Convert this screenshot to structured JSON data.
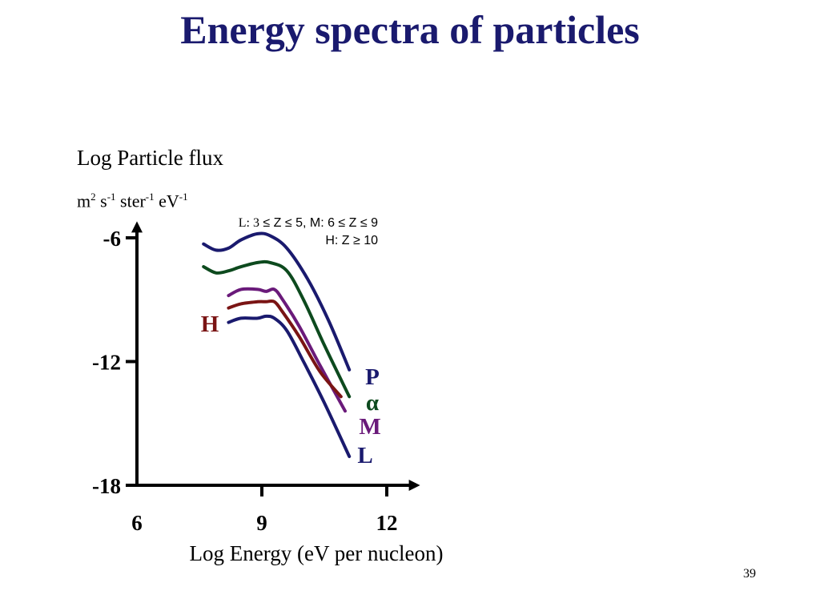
{
  "slide": {
    "title": "Energy spectra of particles",
    "page_number": "39"
  },
  "chart_data": {
    "type": "line",
    "title": "",
    "ylabel": "Log Particle flux",
    "ylabel_units": {
      "parts": [
        {
          "text": "m",
          "sup": "2"
        },
        {
          "text": " s",
          "sup": "-1"
        },
        {
          "text": " ster",
          "sup": "-1"
        },
        {
          "text": " eV",
          "sup": "-1"
        }
      ]
    },
    "xlabel": "Log  Energy (eV per nucleon)",
    "xlim": [
      6,
      12.8
    ],
    "ylim": [
      -18,
      -5.2
    ],
    "x_ticks": [
      6,
      9,
      12
    ],
    "x_tick_labels": [
      "6",
      "9",
      "12"
    ],
    "y_ticks": [
      -6,
      -12,
      -18
    ],
    "y_tick_labels": [
      "-6",
      "-12",
      "-18"
    ],
    "grid": false,
    "legend_note": {
      "line1_prefix": "L: 3",
      "line1_rest": " ≤ Z ≤ 5, M: 6 ≤ Z ≤ 9",
      "line2": "H: Z ≥ 10"
    },
    "series": [
      {
        "name": "P",
        "color": "#1a1a6e",
        "x": [
          7.6,
          7.9,
          8.2,
          8.5,
          8.9,
          9.2,
          9.6,
          10.1,
          10.6,
          11.1
        ],
        "y": [
          -6.3,
          -6.6,
          -6.5,
          -6.1,
          -5.8,
          -5.9,
          -6.5,
          -8.0,
          -10.0,
          -12.4
        ]
      },
      {
        "name": "α",
        "color": "#0d4a1e",
        "x": [
          7.6,
          7.9,
          8.2,
          8.5,
          8.9,
          9.2,
          9.6,
          10.0,
          10.5,
          11.1
        ],
        "y": [
          -7.4,
          -7.7,
          -7.6,
          -7.4,
          -7.2,
          -7.2,
          -7.6,
          -9.0,
          -11.2,
          -13.7
        ]
      },
      {
        "name": "M",
        "color": "#6a1a7a",
        "x": [
          8.2,
          8.5,
          8.9,
          9.1,
          9.3,
          9.5,
          9.9,
          10.4,
          11.0
        ],
        "y": [
          -8.8,
          -8.5,
          -8.5,
          -8.6,
          -8.5,
          -9.0,
          -10.3,
          -12.2,
          -14.4
        ]
      },
      {
        "name": "H",
        "color": "#7a1414",
        "x": [
          8.2,
          8.5,
          8.9,
          9.1,
          9.3,
          9.5,
          9.9,
          10.4,
          10.9
        ],
        "y": [
          -9.4,
          -9.2,
          -9.1,
          -9.1,
          -9.1,
          -9.6,
          -10.8,
          -12.5,
          -13.7
        ]
      },
      {
        "name": "L",
        "color": "#1a1a6e",
        "x": [
          8.2,
          8.5,
          8.9,
          9.1,
          9.3,
          9.6,
          10.0,
          10.5,
          11.1
        ],
        "y": [
          -10.1,
          -9.9,
          -9.9,
          -9.8,
          -9.9,
          -10.5,
          -12.0,
          -14.0,
          -16.6
        ]
      }
    ],
    "series_labels": [
      {
        "series": "P",
        "color": "#1a1a6e"
      },
      {
        "series": "α",
        "color": "#0d4a1e"
      },
      {
        "series": "M",
        "color": "#6a1a7a"
      },
      {
        "series": "L",
        "color": "#1a1a6e"
      },
      {
        "series": "H",
        "color": "#7a1414"
      }
    ]
  }
}
